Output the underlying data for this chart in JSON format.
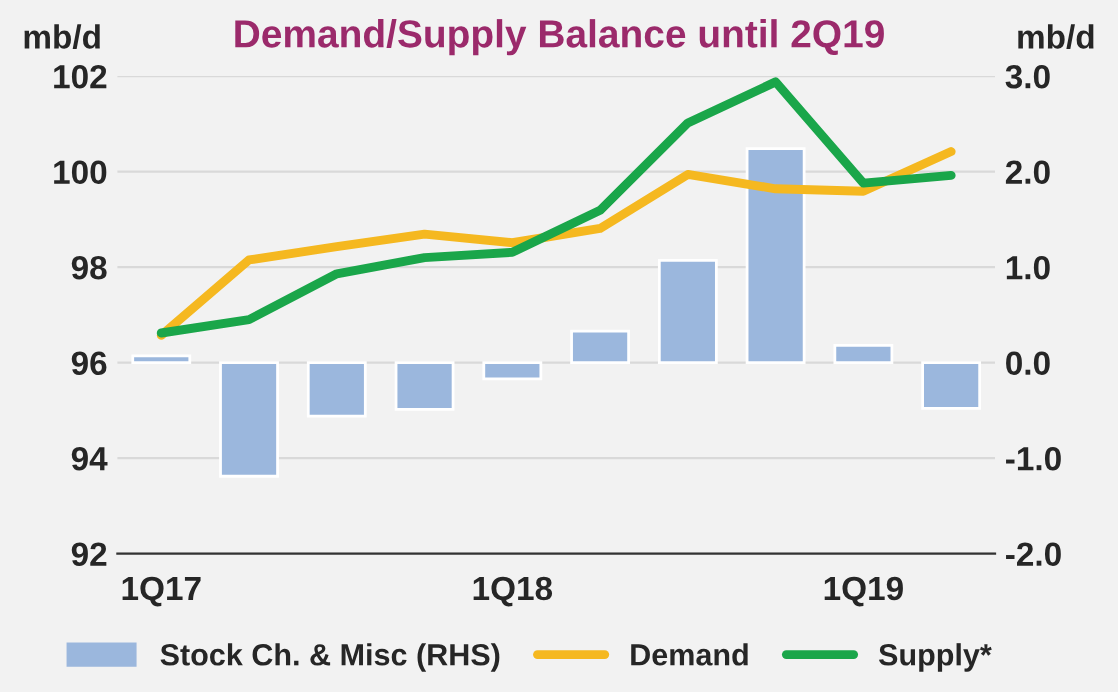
{
  "chart_data": {
    "type": "line",
    "title": "Demand/Supply Balance until 2Q19",
    "ylabel": "mb/d",
    "y2label": "mb/d",
    "categories": [
      "1Q17",
      null,
      null,
      null,
      "1Q18",
      null,
      null,
      null,
      "1Q19",
      null
    ],
    "series": [
      {
        "name": "Stock Ch. & Misc (RHS)",
        "type": "bar",
        "axis": "y2",
        "color": "#9bb7dd",
        "values": [
          0.07,
          -1.19,
          -0.56,
          -0.49,
          -0.17,
          0.33,
          1.07,
          2.24,
          0.18,
          -0.48
        ]
      },
      {
        "name": "Demand",
        "color": "#f5b820",
        "values": [
          96.57,
          98.15,
          98.43,
          98.69,
          98.51,
          98.81,
          99.94,
          99.64,
          99.59,
          100.42
        ]
      },
      {
        "name": "Supply*",
        "color": "#1aa64a",
        "values": [
          96.62,
          96.9,
          97.86,
          98.2,
          98.31,
          99.19,
          101.02,
          101.88,
          99.76,
          99.92
        ]
      }
    ],
    "ylim": [
      92,
      102
    ],
    "yticks": [
      92,
      94,
      96,
      98,
      100,
      102
    ],
    "y2lim": [
      -2,
      3
    ],
    "y2ticks": [
      {
        "value": -2,
        "label": "-2.0"
      },
      {
        "value": -1,
        "label": "-1.0"
      },
      {
        "value": 0,
        "label": "0.0"
      },
      {
        "value": 1,
        "label": "1.0"
      },
      {
        "value": 2,
        "label": "2.0"
      },
      {
        "value": 3,
        "label": "3.0"
      }
    ],
    "grid": "y",
    "legend": "bottom",
    "marker": "none",
    "line_style": "solid"
  }
}
